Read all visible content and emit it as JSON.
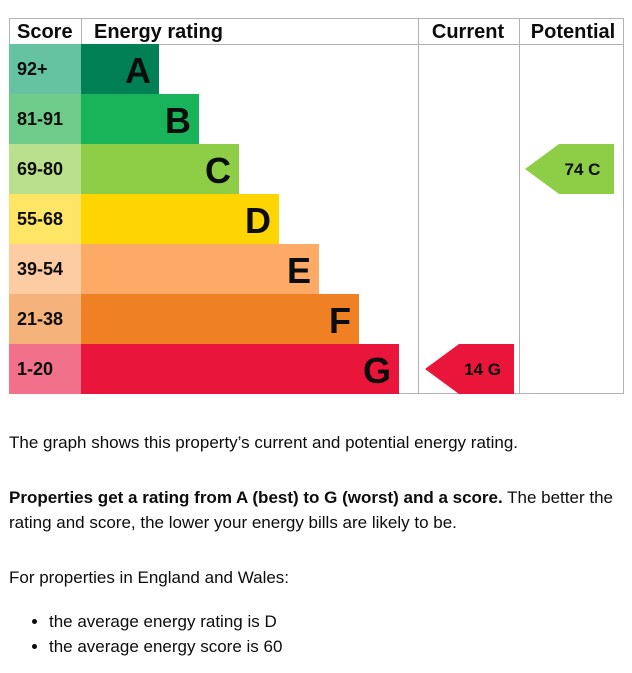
{
  "chart_data": {
    "type": "bar",
    "headers": {
      "score": "Score",
      "rating": "Energy rating",
      "current": "Current",
      "potential": "Potential"
    },
    "bands": [
      {
        "range": "92+",
        "letter": "A",
        "color": "#008054",
        "score_color": "#65c3a2"
      },
      {
        "range": "81-91",
        "letter": "B",
        "color": "#19b459",
        "score_color": "#6fcb8a"
      },
      {
        "range": "69-80",
        "letter": "C",
        "color": "#8dce46",
        "score_color": "#b9e08c"
      },
      {
        "range": "55-68",
        "letter": "D",
        "color": "#ffd500",
        "score_color": "#ffe566"
      },
      {
        "range": "39-54",
        "letter": "E",
        "color": "#fcaa65",
        "score_color": "#fdcca2"
      },
      {
        "range": "21-38",
        "letter": "F",
        "color": "#ef8023",
        "score_color": "#f5b37b"
      },
      {
        "range": "1-20",
        "letter": "G",
        "color": "#e9153b",
        "score_color": "#f07189"
      }
    ],
    "current": {
      "score": 14,
      "letter": "G",
      "label": "14  G",
      "color": "#e9153b"
    },
    "potential": {
      "score": 74,
      "letter": "C",
      "label": "74  C",
      "color": "#8dce46"
    }
  },
  "text": {
    "intro": "The graph shows this property’s current and potential energy rating.",
    "rating_bold": "Properties get a rating from A (best) to G (worst) and a score.",
    "rating_rest": " The better the rating and score, the lower your energy bills are likely to be.",
    "region": "For properties in England and Wales:",
    "facts": [
      "the average energy rating is D",
      "the average energy score is 60"
    ]
  }
}
